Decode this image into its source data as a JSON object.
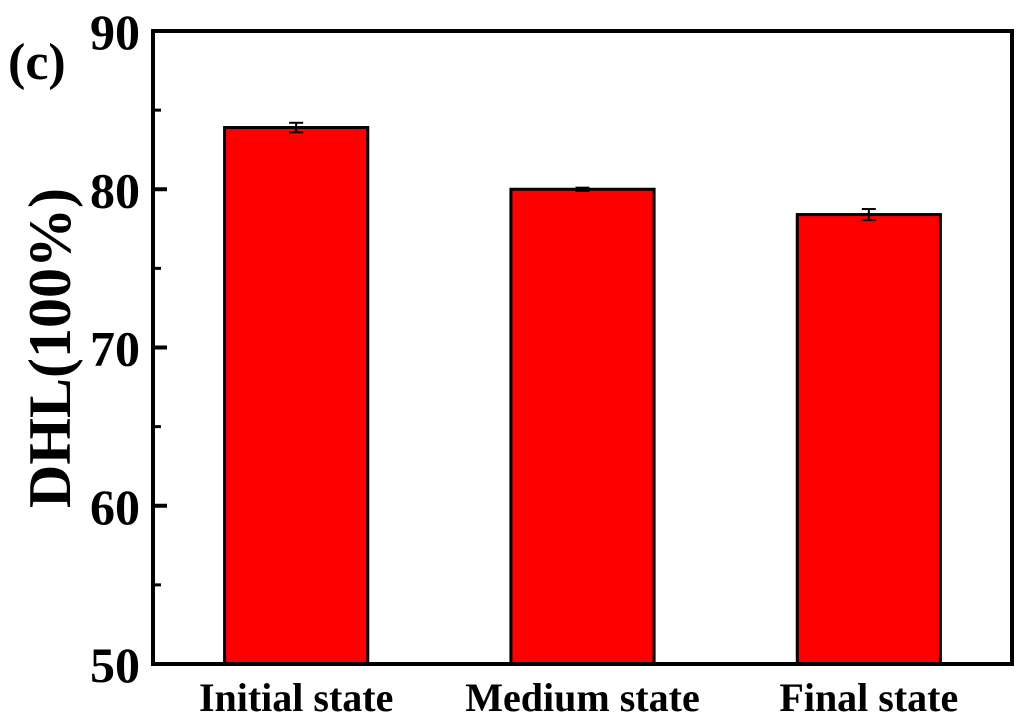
{
  "chart_data": {
    "type": "bar",
    "panel_label": "(c)",
    "title": "",
    "xlabel": "",
    "ylabel": "DHL(100%)",
    "categories": [
      "Initial state",
      "Medium state",
      "Final state"
    ],
    "values": [
      83.9,
      80.0,
      78.4
    ],
    "errors": [
      0.3,
      0.1,
      0.35
    ],
    "ylim": [
      50,
      90
    ],
    "yticks": [
      50,
      60,
      70,
      80,
      90
    ],
    "yticks_minor": [
      55,
      65,
      75,
      85
    ],
    "bar_color": "#ff0000",
    "edge_color": "#000000",
    "grid": false,
    "legend": false
  }
}
